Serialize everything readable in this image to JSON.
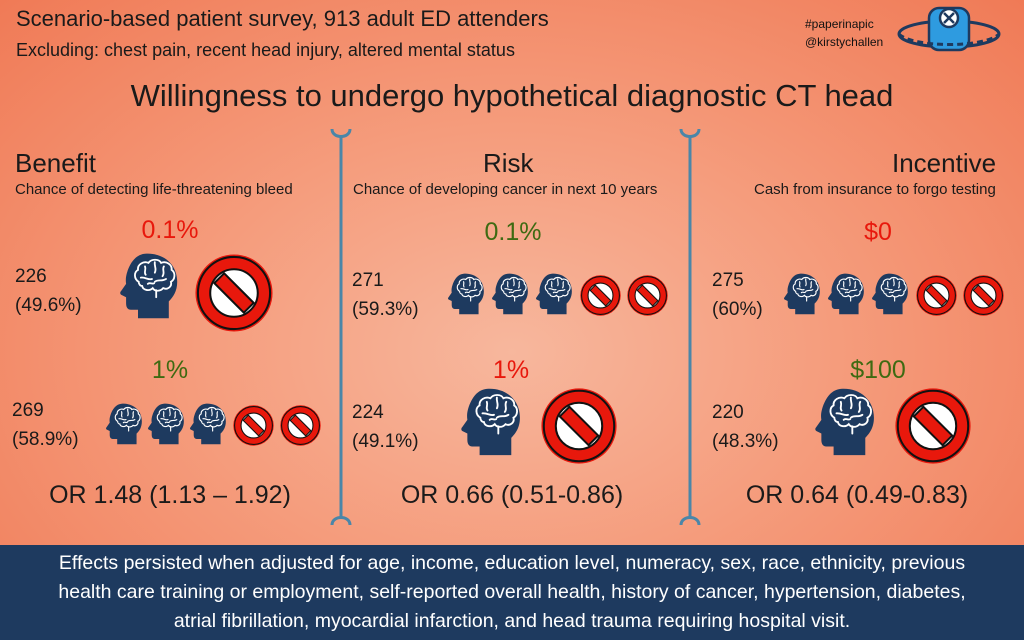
{
  "header": {
    "title": "Scenario-based patient survey, 913 adult ED attenders",
    "subtitle": "Excluding: chest pain, recent head injury, altered mental status",
    "hashtag": "#paperinapic",
    "handle": "@kirstychallen"
  },
  "main_title": "Willingness to undergo hypothetical diagnostic CT head",
  "colors": {
    "red": "#e8180c",
    "green": "#3e6a12",
    "head": "#1e3a5f",
    "divider": "#4a86a8",
    "footer_bg": "#1e3a5f"
  },
  "columns": [
    {
      "heading": "Benefit",
      "subheading": "Chance of detecting life-threatening bleed",
      "scenario_a": {
        "label": "0.1%",
        "count": "226",
        "percent": "(49.6%)"
      },
      "scenario_b": {
        "label": "1%",
        "count": "269",
        "percent": "(58.9%)"
      },
      "odds_ratio": "OR 1.48 (1.13 – 1.92)"
    },
    {
      "heading": "Risk",
      "subheading": "Chance of developing cancer in next 10 years",
      "scenario_a": {
        "label": "0.1%",
        "count": "271",
        "percent": "(59.3%)"
      },
      "scenario_b": {
        "label": "1%",
        "count": "224",
        "percent": "(49.1%)"
      },
      "odds_ratio": "OR 0.66 (0.51-0.86)"
    },
    {
      "heading": "Incentive",
      "subheading": "Cash from insurance to forgo testing",
      "scenario_a": {
        "label": "$0",
        "count": "275",
        "percent": "(60%)"
      },
      "scenario_b": {
        "label": "$100",
        "count": "220",
        "percent": "(48.3%)"
      },
      "odds_ratio": "OR 0.64 (0.49-0.83)"
    }
  ],
  "footer": {
    "line1": "Effects persisted when adjusted for age, income, education level, numeracy, sex, race, ethnicity, previous",
    "line2": "health care training or employment, self-reported overall health, history of cancer, hypertension, diabetes,",
    "line3": "atrial fibrillation, myocardial infarction, and head trauma requiring hospital visit."
  }
}
